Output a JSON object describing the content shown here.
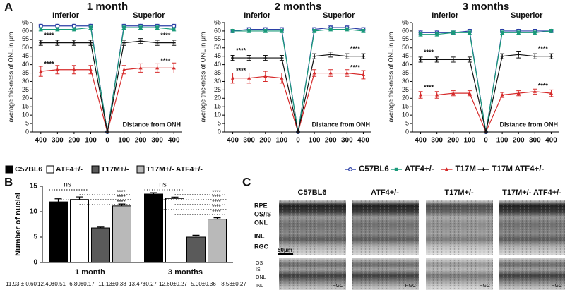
{
  "panels": {
    "a": "A",
    "b": "B",
    "c": "C"
  },
  "chart_data": [
    {
      "type": "line",
      "title": "1 month",
      "y_label": "average thickness of ONL in μm",
      "x_label": "Distance from ONH",
      "region_labels": [
        "Inferior",
        "Superior"
      ],
      "categories": [
        "400",
        "300",
        "200",
        "100",
        "0",
        "100",
        "200",
        "300",
        "400"
      ],
      "ylim": [
        0,
        65
      ],
      "yticks": [
        0,
        5,
        10,
        15,
        20,
        25,
        30,
        35,
        40,
        45,
        50,
        55,
        60,
        65
      ],
      "series": [
        {
          "name": "C57BL6",
          "color": "#2b3fa6",
          "marker": "circle",
          "values": [
            63,
            63,
            63,
            63,
            0,
            63,
            63,
            63,
            63
          ],
          "errors": [
            1,
            1,
            1,
            1,
            0,
            1,
            1,
            1,
            1
          ]
        },
        {
          "name": "ATF4+/-",
          "color": "#1a9a7a",
          "marker": "square",
          "values": [
            61,
            61,
            61,
            62,
            0,
            62,
            62,
            62,
            61
          ],
          "errors": [
            1,
            1,
            1,
            1,
            0,
            1,
            1,
            1,
            1
          ]
        },
        {
          "name": "T17M",
          "color": "#d62a2a",
          "marker": "triangle",
          "significance": "****",
          "values": [
            36,
            37,
            37,
            37,
            0,
            37,
            38,
            38,
            38
          ],
          "errors": [
            3,
            2.5,
            2.5,
            2.5,
            0,
            2.5,
            2.5,
            2.5,
            3
          ]
        },
        {
          "name": "T17M ATF4+/-",
          "color": "#111111",
          "marker": "tick",
          "significance": "****",
          "values": [
            53,
            53,
            53,
            53,
            0,
            53,
            54,
            53,
            53
          ],
          "errors": [
            1.5,
            1.5,
            1.5,
            1.5,
            0,
            1.5,
            1.5,
            1.5,
            1.5
          ]
        }
      ]
    },
    {
      "type": "line",
      "title": "2 months",
      "y_label": "average thickness of ONL in μm",
      "x_label": "Distance from ONH",
      "region_labels": [
        "Inferior",
        "Superior"
      ],
      "categories": [
        "400",
        "300",
        "200",
        "100",
        "0",
        "100",
        "200",
        "300",
        "400"
      ],
      "ylim": [
        0,
        65
      ],
      "yticks": [
        0,
        5,
        10,
        15,
        20,
        25,
        30,
        35,
        40,
        45,
        50,
        55,
        60,
        65
      ],
      "series": [
        {
          "name": "C57BL6",
          "color": "#2b3fa6",
          "marker": "circle",
          "values": [
            60,
            61,
            61,
            61,
            0,
            61,
            62,
            62,
            61
          ],
          "errors": [
            1,
            1,
            1,
            1,
            0,
            1,
            1,
            1,
            1
          ]
        },
        {
          "name": "ATF4+/-",
          "color": "#1a9a7a",
          "marker": "square",
          "values": [
            60,
            60,
            60,
            60,
            0,
            60,
            61,
            61,
            60
          ],
          "errors": [
            1,
            1,
            1,
            1,
            0,
            1,
            1,
            1,
            1
          ]
        },
        {
          "name": "T17M",
          "color": "#d62a2a",
          "marker": "triangle",
          "significance": "****",
          "values": [
            32,
            32,
            33,
            32,
            0,
            35,
            35,
            35,
            34
          ],
          "errors": [
            3,
            3,
            3,
            3,
            0,
            2,
            2,
            2,
            2.5
          ]
        },
        {
          "name": "T17M ATF4+/-",
          "color": "#111111",
          "marker": "tick",
          "significance": "****",
          "values": [
            44,
            44,
            44,
            44,
            0,
            45,
            46,
            45,
            45
          ],
          "errors": [
            1.5,
            1.5,
            1.5,
            1.5,
            0,
            1.5,
            1.5,
            1.5,
            1.5
          ]
        }
      ]
    },
    {
      "type": "line",
      "title": "3 months",
      "y_label": "average thickness of ONL in μm",
      "x_label": "Distance from ONH",
      "region_labels": [
        "Inferior",
        "Superior"
      ],
      "categories": [
        "400",
        "300",
        "200",
        "100",
        "0",
        "100",
        "200",
        "300",
        "400"
      ],
      "ylim": [
        0,
        65
      ],
      "yticks": [
        0,
        5,
        10,
        15,
        20,
        25,
        30,
        35,
        40,
        45,
        50,
        55,
        60,
        65
      ],
      "legend": "bottom",
      "series": [
        {
          "name": "C57BL6",
          "color": "#2b3fa6",
          "marker": "circle",
          "values": [
            59,
            59,
            59,
            60,
            0,
            60,
            60,
            60,
            60
          ],
          "errors": [
            1,
            1,
            1,
            1,
            0,
            1,
            1,
            1,
            1
          ]
        },
        {
          "name": "ATF4+/-",
          "color": "#1a9a7a",
          "marker": "square",
          "values": [
            58,
            58,
            59,
            59,
            0,
            59,
            59,
            59,
            60
          ],
          "errors": [
            1,
            1,
            1,
            1,
            0,
            1,
            1,
            1,
            1
          ]
        },
        {
          "name": "T17M",
          "color": "#d62a2a",
          "marker": "triangle",
          "significance": "****",
          "values": [
            22,
            22,
            23,
            23,
            0,
            22,
            23,
            24,
            23
          ],
          "errors": [
            2,
            2,
            1.5,
            1.5,
            0,
            1.5,
            1.5,
            1.5,
            2
          ]
        },
        {
          "name": "T17M ATF4+/-",
          "color": "#111111",
          "marker": "tick",
          "significance": "****",
          "values": [
            43,
            43,
            43,
            43,
            0,
            45,
            46,
            45,
            45
          ],
          "errors": [
            1.5,
            1.5,
            1.5,
            1.5,
            0,
            1.5,
            2,
            1.5,
            1.5
          ]
        }
      ]
    },
    {
      "type": "bar",
      "y_label": "Number of nuclei",
      "legend": "top",
      "categories": [
        "1 month",
        "3 months"
      ],
      "ylim": [
        0,
        15
      ],
      "yticks": [
        0,
        5,
        10,
        15
      ],
      "significance": [
        [
          "ns",
          "****",
          "****",
          "****"
        ],
        [
          "ns",
          "****",
          "****",
          "****",
          "****",
          "****"
        ]
      ],
      "series": [
        {
          "name": "C57BL6",
          "color": "#000000",
          "values": [
            11.93,
            13.47
          ],
          "errors": [
            0.6,
            0.27
          ],
          "value_labels": [
            "11.93 ± 0.60",
            "13.47±0.27"
          ]
        },
        {
          "name": "ATF4+/-",
          "color": "#ffffff",
          "values": [
            12.4,
            12.6
          ],
          "errors": [
            0.51,
            0.27
          ],
          "value_labels": [
            "12.40±0.51",
            "12.60±0.27"
          ]
        },
        {
          "name": "T17M+/-",
          "color": "#5a5a5a",
          "values": [
            6.8,
            5.0
          ],
          "errors": [
            0.17,
            0.36
          ],
          "value_labels": [
            "6.80±0.17",
            "5.00±0.36"
          ]
        },
        {
          "name": "T17M+/- ATF4+/-",
          "color": "#b9b9b9",
          "values": [
            11.13,
            8.53
          ],
          "errors": [
            0.38,
            0.27
          ],
          "value_labels": [
            "11.13±0.38",
            "8.53±0.27"
          ]
        }
      ]
    }
  ],
  "micrographs": {
    "columns": [
      "C57BL6",
      "ATF4+/-",
      "T17M+/-",
      "T17M+/- ATF4+/-"
    ],
    "top_row_labels": [
      "RPE",
      "OS/IS",
      "ONL",
      "INL",
      "RGC"
    ],
    "scale_bar": "50μm",
    "bottom_row_labels": [
      "OS",
      "IS",
      "ONL",
      "INL"
    ],
    "bottom_image_labels": [
      "RGC",
      "RGC",
      "RGC",
      "RGC"
    ]
  }
}
